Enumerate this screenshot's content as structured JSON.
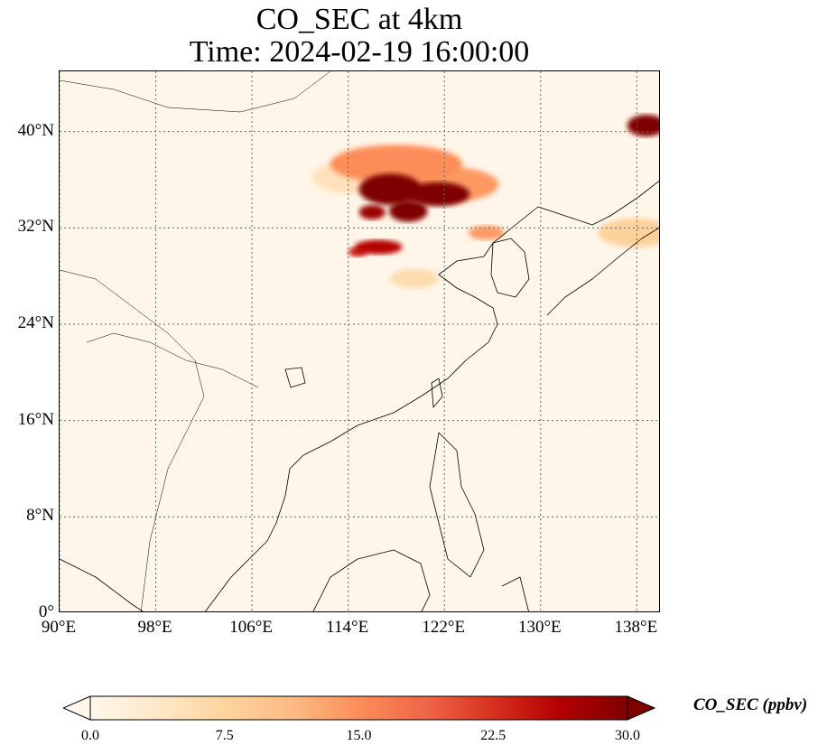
{
  "title": {
    "line1": "CO_SEC at 4km",
    "line2": "Time: 2024-02-19 16:00:00"
  },
  "map": {
    "extent": {
      "lon_min": 90,
      "lon_max": 140,
      "lat_min": 0,
      "lat_max": 45
    },
    "lat_ticks": [
      {
        "value": 40,
        "label": "40°N"
      },
      {
        "value": 32,
        "label": "32°N"
      },
      {
        "value": 24,
        "label": "24°N"
      },
      {
        "value": 16,
        "label": "16°N"
      },
      {
        "value": 8,
        "label": "8°N"
      },
      {
        "value": 0,
        "label": "0°"
      }
    ],
    "lon_ticks": [
      {
        "value": 90,
        "label": "90°E"
      },
      {
        "value": 98,
        "label": "98°E"
      },
      {
        "value": 106,
        "label": "106°E"
      },
      {
        "value": 114,
        "label": "114°E"
      },
      {
        "value": 122,
        "label": "122°E"
      },
      {
        "value": 130,
        "label": "130°E"
      },
      {
        "value": 138,
        "label": "138°E"
      }
    ],
    "gridlines": "dotted",
    "background_color": "#fff5e8",
    "plumes": [
      {
        "lon": 117.5,
        "lat": 35.2,
        "value": 30,
        "rx": 2.6,
        "ry": 1.3
      },
      {
        "lon": 121.5,
        "lat": 34.8,
        "value": 30,
        "rx": 2.6,
        "ry": 1.0
      },
      {
        "lon": 119.0,
        "lat": 33.4,
        "value": 30,
        "rx": 1.6,
        "ry": 0.9
      },
      {
        "lon": 116.0,
        "lat": 33.3,
        "value": 28,
        "rx": 1.1,
        "ry": 0.6
      },
      {
        "lon": 118.0,
        "lat": 37.3,
        "value": 15,
        "rx": 5.5,
        "ry": 1.6
      },
      {
        "lon": 122.0,
        "lat": 35.6,
        "value": 14,
        "rx": 4.5,
        "ry": 1.5
      },
      {
        "lon": 116.5,
        "lat": 30.4,
        "value": 26,
        "rx": 2.0,
        "ry": 0.6
      },
      {
        "lon": 114.8,
        "lat": 30.0,
        "value": 24,
        "rx": 0.8,
        "ry": 0.4
      },
      {
        "lon": 125.5,
        "lat": 31.6,
        "value": 14,
        "rx": 1.5,
        "ry": 0.6
      },
      {
        "lon": 138.8,
        "lat": 40.5,
        "value": 30,
        "rx": 1.6,
        "ry": 0.9
      },
      {
        "lon": 137.8,
        "lat": 31.6,
        "value": 8,
        "rx": 3.0,
        "ry": 1.2
      },
      {
        "lon": 114.5,
        "lat": 36.2,
        "value": 5,
        "rx": 3.5,
        "ry": 1.4
      },
      {
        "lon": 119.5,
        "lat": 27.8,
        "value": 6,
        "rx": 2.0,
        "ry": 0.8
      }
    ]
  },
  "colorbar": {
    "label": "CO_SEC (ppbv)",
    "min": 0,
    "max": 30,
    "extend": "both",
    "colormap": [
      "#fff7ec",
      "#fee8c8",
      "#fdd49e",
      "#fdbb84",
      "#fc8d59",
      "#ef6548",
      "#d7301f",
      "#b30000",
      "#7f0000"
    ],
    "ticks": [
      "0.0",
      "7.5",
      "15.0",
      "22.5",
      "30.0"
    ]
  }
}
